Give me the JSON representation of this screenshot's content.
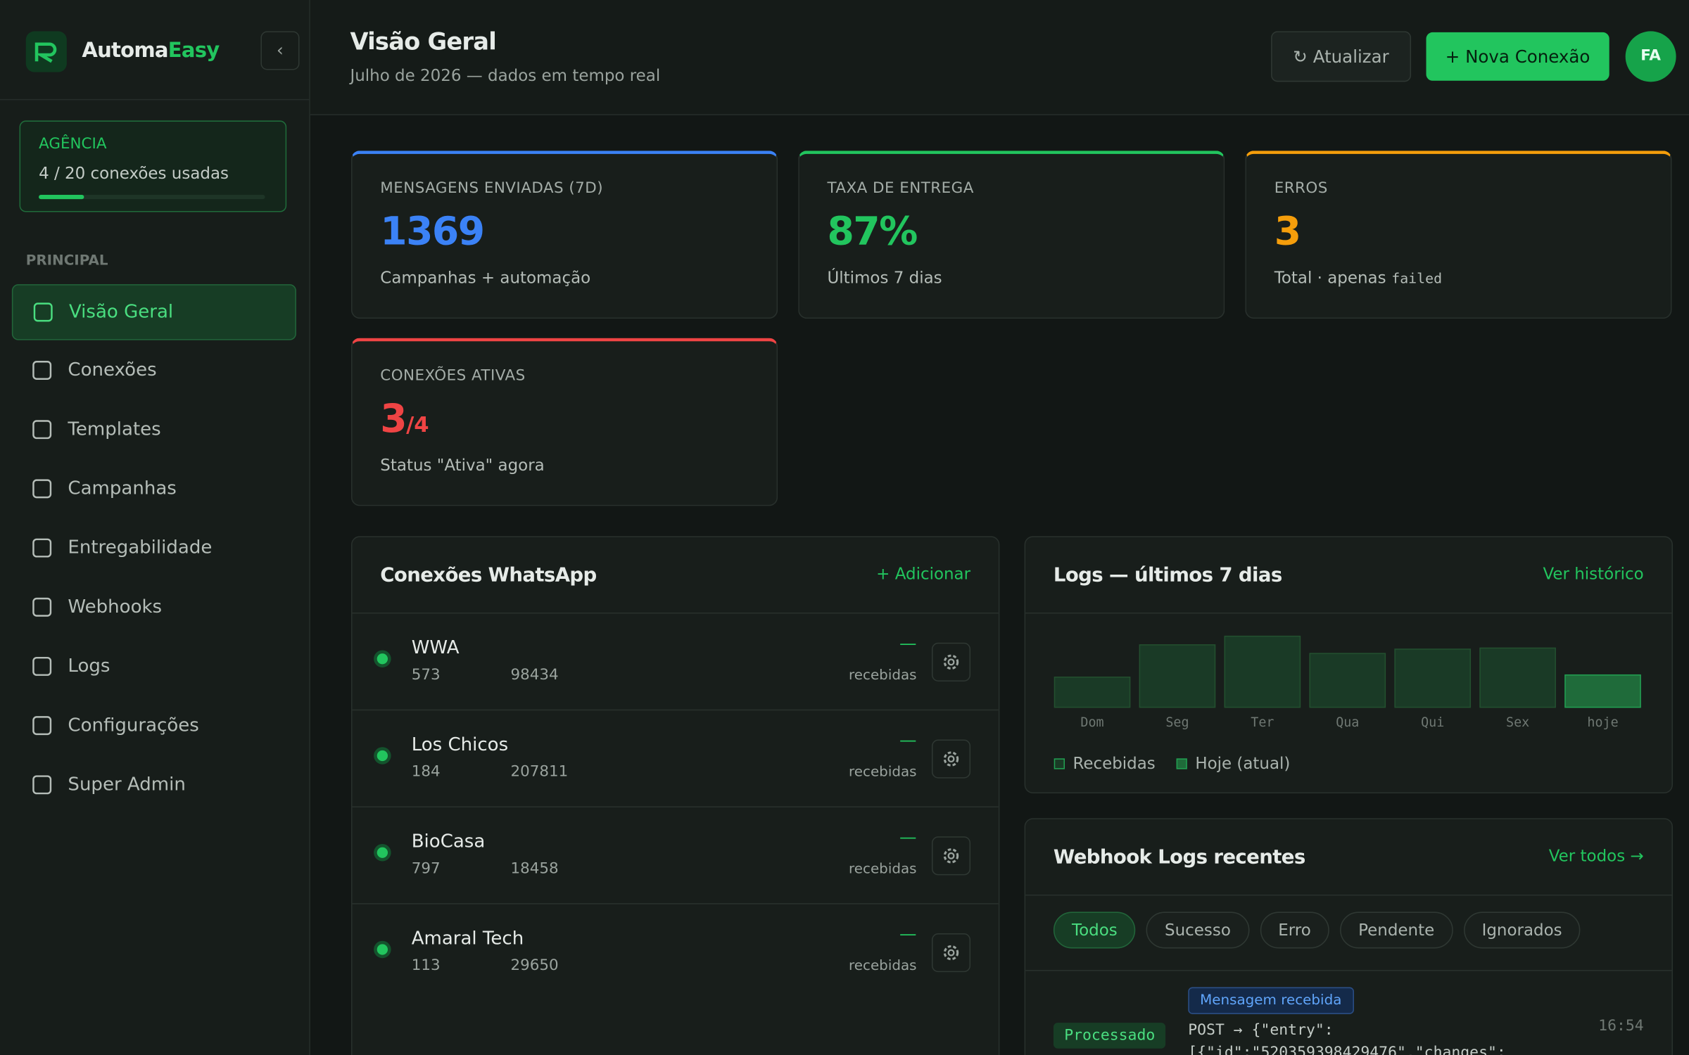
{
  "sidebar": {
    "brand": {
      "part1": "Automa",
      "part2": "Easy"
    },
    "plan": {
      "label": "AGÊNCIA",
      "usage": "4 / 20 conexões usadas"
    },
    "section": "PRINCIPAL",
    "nav": [
      "Visão Geral",
      "Conexões",
      "Templates",
      "Campanhas",
      "Entregabilidade",
      "Webhooks",
      "Logs",
      "Configurações",
      "Super Admin"
    ]
  },
  "header": {
    "title": "Visão Geral",
    "subtitle": "Julho de 2026 — dados em tempo real",
    "refresh": "↻ Atualizar",
    "new_connection": "+ Nova Conexão",
    "avatar": "FA"
  },
  "stats": [
    {
      "label": "MENSAGENS ENVIADAS (7D)",
      "value": "1369",
      "sub": "Campanhas + automação"
    },
    {
      "label": "TAXA DE ENTREGA",
      "value": "87%",
      "sub": "Últimos 7 dias"
    },
    {
      "label": "ERROS",
      "value": "3",
      "sub": "Total · apenas",
      "sub_code": "failed"
    },
    {
      "label": "CONEXÕES ATIVAS",
      "value": "3",
      "value_suffix": "/4",
      "sub": "Status \"Ativa\" agora"
    }
  ],
  "connections": {
    "title": "Conexões WhatsApp",
    "action": "+ Adicionar",
    "rows": [
      {
        "name": "WWA",
        "phone_a": "573",
        "phone_b": "98434",
        "count": "—",
        "count_label": "recebidas"
      },
      {
        "name": "Los Chicos",
        "phone_a": "184",
        "phone_b": "207811",
        "count": "—",
        "count_label": "recebidas"
      },
      {
        "name": "BioCasa",
        "phone_a": "797",
        "phone_b": "18458",
        "count": "—",
        "count_label": "recebidas"
      },
      {
        "name": "Amaral Tech",
        "phone_a": "113",
        "phone_b": "29650",
        "count": "—",
        "count_label": "recebidas"
      }
    ]
  },
  "logs_chart": {
    "type": "bar",
    "title": "Logs — últimos 7 dias",
    "action": "Ver histórico",
    "categories": [
      "Dom",
      "Seg",
      "Ter",
      "Qua",
      "Qui",
      "Sex",
      "hoje"
    ],
    "values": [
      28,
      58,
      66,
      50,
      54,
      55,
      30
    ],
    "ylim": [
      0,
      70
    ],
    "legend": [
      "Recebidas",
      "Hoje (atual)"
    ]
  },
  "webhooks": {
    "title": "Webhook Logs recentes",
    "action": "Ver todos →",
    "filters": [
      "Todos",
      "Sucesso",
      "Erro",
      "Pendente",
      "Ignorados"
    ],
    "entry": {
      "status": "Processado",
      "event": "Mensagem recebida",
      "line1": "POST → {\"entry\":",
      "line2": "[{\"id\":\"520359398429476\",\"changes\":",
      "time": "16:54"
    }
  }
}
